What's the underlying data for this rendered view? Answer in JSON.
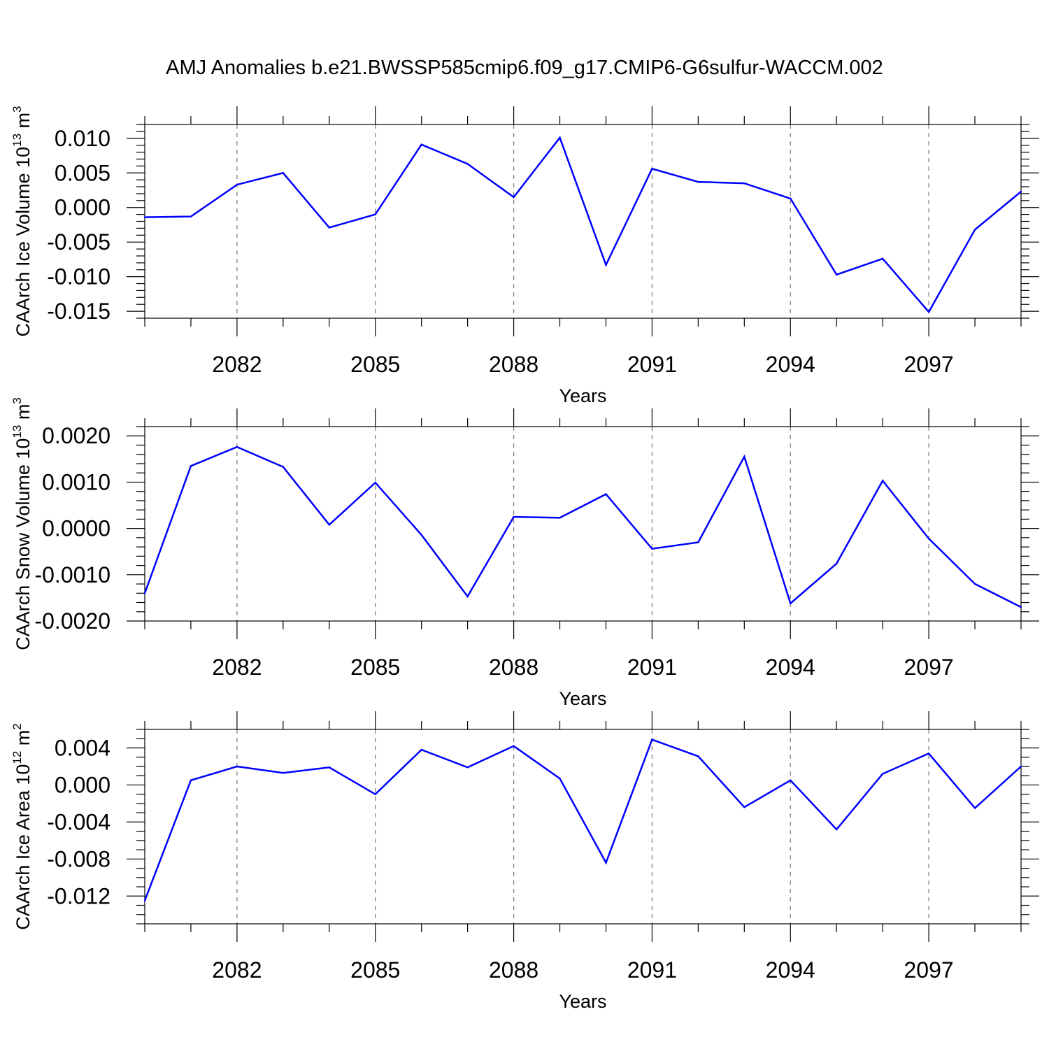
{
  "title": "AMJ Anomalies b.e21.BWSSP585cmip6.f09_g17.CMIP6-G6sulfur-WACCM.002",
  "colors": {
    "line": "#0000ff",
    "grid": "#777777",
    "axes": "#000000"
  },
  "chart_data": [
    {
      "type": "line",
      "ylabel": "CAArch Ice Volume 10",
      "ylabel_exp": "13",
      "ylabel_unit": " m",
      "ylabel_unit_exp": "3",
      "xlabel": "Years",
      "xlim": [
        2080,
        2099
      ],
      "ylim": [
        -0.016,
        0.012
      ],
      "yticks": [
        0.01,
        0.005,
        0.0,
        -0.005,
        -0.01,
        -0.015
      ],
      "ytick_labels": [
        "0.010",
        "0.005",
        "0.000",
        "-0.005",
        "-0.010",
        "-0.015"
      ],
      "yminor_step": 0.001,
      "xticks": [
        2082,
        2085,
        2088,
        2091,
        2094,
        2097
      ],
      "xtick_labels": [
        "2082",
        "2085",
        "2088",
        "2091",
        "2094",
        "2097"
      ],
      "x": [
        2080,
        2081,
        2082,
        2083,
        2084,
        2085,
        2086,
        2087,
        2088,
        2089,
        2090,
        2091,
        2092,
        2093,
        2094,
        2095,
        2096,
        2097,
        2098,
        2099
      ],
      "series": [
        {
          "values": [
            -0.0014,
            -0.0013,
            0.0033,
            0.005,
            -0.0029,
            -0.001,
            0.0091,
            0.0063,
            0.0015,
            0.0101,
            -0.0083,
            0.0056,
            0.0037,
            0.0035,
            0.0013,
            -0.0097,
            -0.0074,
            -0.0151,
            -0.0032,
            0.0023
          ]
        }
      ]
    },
    {
      "type": "line",
      "ylabel": "CAArch Snow Volume 10",
      "ylabel_exp": "13",
      "ylabel_unit": " m",
      "ylabel_unit_exp": "3",
      "xlabel": "Years",
      "xlim": [
        2080,
        2099
      ],
      "ylim": [
        -0.002,
        0.0022
      ],
      "yticks": [
        0.002,
        0.001,
        0.0,
        -0.001,
        -0.002
      ],
      "ytick_labels": [
        "0.0020",
        "0.0010",
        "0.0000",
        "-0.0010",
        "-0.0020"
      ],
      "yminor_step": 0.0002,
      "xticks": [
        2082,
        2085,
        2088,
        2091,
        2094,
        2097
      ],
      "xtick_labels": [
        "2082",
        "2085",
        "2088",
        "2091",
        "2094",
        "2097"
      ],
      "x": [
        2080,
        2081,
        2082,
        2083,
        2084,
        2085,
        2086,
        2087,
        2088,
        2089,
        2090,
        2091,
        2092,
        2093,
        2094,
        2095,
        2096,
        2097,
        2098,
        2099
      ],
      "series": [
        {
          "values": [
            -0.0014,
            0.00135,
            0.00176,
            0.00133,
            8e-05,
            0.00099,
            -0.00014,
            -0.00147,
            0.00025,
            0.00023,
            0.00074,
            -0.00044,
            -0.0003,
            0.00155,
            -0.00162,
            -0.00076,
            0.00103,
            -0.00022,
            -0.0012,
            -0.0017
          ]
        }
      ]
    },
    {
      "type": "line",
      "ylabel": "CAArch Ice Area 10",
      "ylabel_exp": "12",
      "ylabel_unit": " m",
      "ylabel_unit_exp": "2",
      "xlabel": "Years",
      "xlim": [
        2080,
        2099
      ],
      "ylim": [
        -0.015,
        0.006
      ],
      "yticks": [
        0.004,
        0.0,
        -0.004,
        -0.008,
        -0.012
      ],
      "ytick_labels": [
        "0.004",
        "0.000",
        "-0.004",
        "-0.008",
        "-0.012"
      ],
      "yminor_step": 0.001,
      "xticks": [
        2082,
        2085,
        2088,
        2091,
        2094,
        2097
      ],
      "xtick_labels": [
        "2082",
        "2085",
        "2088",
        "2091",
        "2094",
        "2097"
      ],
      "x": [
        2080,
        2081,
        2082,
        2083,
        2084,
        2085,
        2086,
        2087,
        2088,
        2089,
        2090,
        2091,
        2092,
        2093,
        2094,
        2095,
        2096,
        2097,
        2098,
        2099
      ],
      "series": [
        {
          "values": [
            -0.0125,
            0.0005,
            0.002,
            0.0013,
            0.0019,
            -0.001,
            0.0038,
            0.0019,
            0.0042,
            0.0007,
            -0.0084,
            0.0049,
            0.0031,
            -0.0024,
            0.0005,
            -0.0048,
            0.0012,
            0.0034,
            -0.0025,
            0.002
          ]
        }
      ]
    }
  ]
}
